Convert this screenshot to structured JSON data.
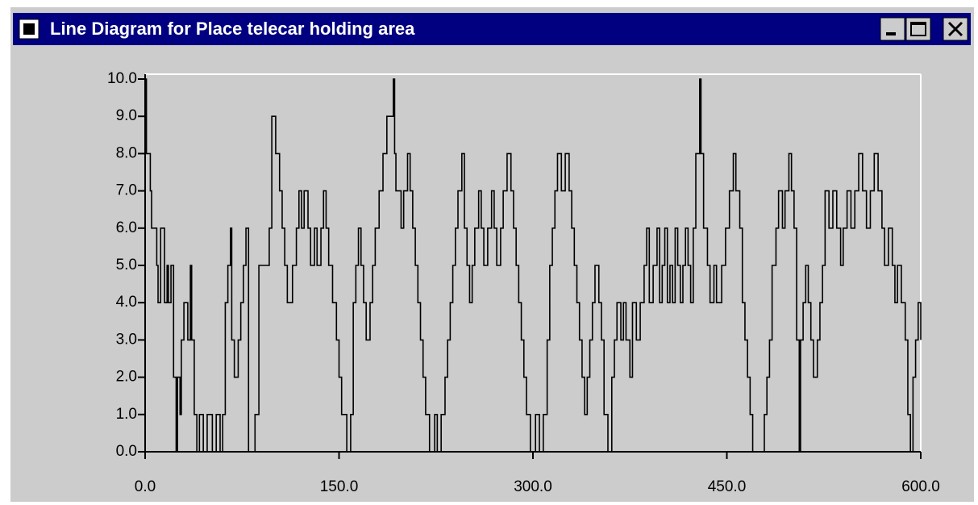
{
  "chart_data": {
    "type": "step",
    "title": "Line Diagram for Place telecar holding area",
    "x": [
      0,
      1,
      4,
      5,
      9,
      10,
      12,
      15,
      17,
      18,
      20,
      22,
      24,
      25,
      27,
      28,
      30,
      33,
      35,
      36,
      38,
      40,
      42,
      45,
      48,
      52,
      55,
      58,
      60,
      62,
      64,
      66,
      67,
      69,
      72,
      74,
      76,
      78,
      80,
      85,
      88,
      96,
      98,
      101,
      104,
      106,
      108,
      110,
      114,
      117,
      119,
      121,
      123,
      126,
      128,
      131,
      133,
      136,
      138,
      140,
      142,
      145,
      148,
      150,
      152,
      156,
      159,
      161,
      163,
      165,
      167,
      169,
      171,
      174,
      176,
      178,
      181,
      184,
      187,
      192,
      193,
      194,
      198,
      200,
      203,
      205,
      207,
      209,
      211,
      213,
      215,
      217,
      220,
      224,
      226,
      229,
      232,
      234,
      236,
      238,
      240,
      242,
      245,
      247,
      249,
      251,
      253,
      255,
      258,
      260,
      262,
      265,
      268,
      270,
      272,
      275,
      277,
      280,
      283,
      285,
      287,
      289,
      291,
      293,
      295,
      298,
      302,
      305,
      308,
      311,
      313,
      315,
      317,
      319,
      322,
      325,
      328,
      330,
      332,
      334,
      336,
      338,
      340,
      342,
      344,
      346,
      348,
      351,
      353,
      355,
      358,
      361,
      363,
      365,
      368,
      370,
      372,
      375,
      377,
      380,
      383,
      386,
      388,
      390,
      393,
      396,
      398,
      400,
      402,
      404,
      406,
      408,
      410,
      412,
      414,
      416,
      418,
      420,
      422,
      424,
      426,
      429,
      430,
      432,
      435,
      437,
      440,
      442,
      446,
      449,
      452,
      455,
      457,
      460,
      462,
      464,
      466,
      468,
      470,
      479,
      481,
      483,
      485,
      488,
      490,
      493,
      495,
      498,
      500,
      502,
      504,
      506,
      507,
      509,
      511,
      513,
      515,
      517,
      520,
      522,
      524,
      526,
      529,
      532,
      535,
      538,
      540,
      543,
      546,
      549,
      552,
      555,
      558,
      561,
      564,
      567,
      570,
      572,
      575,
      578,
      580,
      582,
      585,
      588,
      590,
      592,
      594,
      596,
      598,
      600
    ],
    "values": [
      10,
      8,
      7,
      6,
      5,
      4,
      6,
      4,
      5,
      4,
      5,
      2,
      0,
      2,
      1,
      3,
      4,
      3,
      5,
      3,
      1,
      0,
      1,
      0,
      1,
      0,
      1,
      0,
      1,
      4,
      5,
      6,
      3,
      2,
      3,
      4,
      5,
      6,
      0,
      1,
      5,
      6,
      9,
      8,
      7,
      6,
      5,
      4,
      5,
      6,
      7,
      6,
      7,
      6,
      5,
      6,
      5,
      6,
      7,
      6,
      5,
      4,
      3,
      2,
      1,
      0,
      1,
      4,
      5,
      6,
      5,
      4,
      3,
      4,
      5,
      6,
      7,
      8,
      9,
      10,
      8,
      7,
      6,
      7,
      8,
      7,
      6,
      5,
      4,
      3,
      2,
      1,
      0,
      1,
      0,
      1,
      2,
      3,
      4,
      5,
      6,
      7,
      8,
      6,
      5,
      4,
      5,
      6,
      7,
      6,
      5,
      6,
      7,
      6,
      5,
      6,
      7,
      8,
      7,
      6,
      5,
      4,
      3,
      2,
      1,
      0,
      1,
      0,
      1,
      3,
      5,
      6,
      7,
      8,
      7,
      8,
      7,
      6,
      5,
      4,
      3,
      2,
      1,
      2,
      3,
      4,
      5,
      4,
      3,
      1,
      0,
      2,
      3,
      4,
      3,
      4,
      3,
      2,
      4,
      3,
      4,
      5,
      6,
      4,
      5,
      6,
      4,
      5,
      6,
      4,
      5,
      4,
      6,
      5,
      4,
      5,
      6,
      5,
      4,
      6,
      8,
      10,
      8,
      6,
      5,
      4,
      5,
      4,
      5,
      6,
      7,
      8,
      7,
      6,
      4,
      3,
      2,
      1,
      0,
      1,
      2,
      3,
      5,
      6,
      7,
      6,
      7,
      8,
      7,
      6,
      3,
      0,
      3,
      4,
      5,
      4,
      3,
      2,
      3,
      4,
      5,
      7,
      6,
      7,
      6,
      5,
      6,
      7,
      6,
      7,
      8,
      7,
      6,
      7,
      8,
      7,
      6,
      5,
      6,
      5,
      4,
      5,
      4,
      3,
      1,
      0,
      2,
      3,
      4,
      3
    ],
    "color": "#000000",
    "xlim": [
      0,
      600
    ],
    "ylim": [
      0,
      10
    ],
    "xticks": [
      {
        "value": 0,
        "label": "0.0"
      },
      {
        "value": 150,
        "label": "150.0"
      },
      {
        "value": 300,
        "label": "300.0"
      },
      {
        "value": 450,
        "label": "450.0"
      },
      {
        "value": 600,
        "label": "600.0"
      }
    ],
    "yticks": [
      {
        "value": 0,
        "label": "0.0"
      },
      {
        "value": 1,
        "label": "1.0"
      },
      {
        "value": 2,
        "label": "2.0"
      },
      {
        "value": 3,
        "label": "3.0"
      },
      {
        "value": 4,
        "label": "4.0"
      },
      {
        "value": 5,
        "label": "5.0"
      },
      {
        "value": 6,
        "label": "6.0"
      },
      {
        "value": 7,
        "label": "7.0"
      },
      {
        "value": 8,
        "label": "8.0"
      },
      {
        "value": 9,
        "label": "9.0"
      },
      {
        "value": 10,
        "label": "10.0"
      }
    ]
  }
}
